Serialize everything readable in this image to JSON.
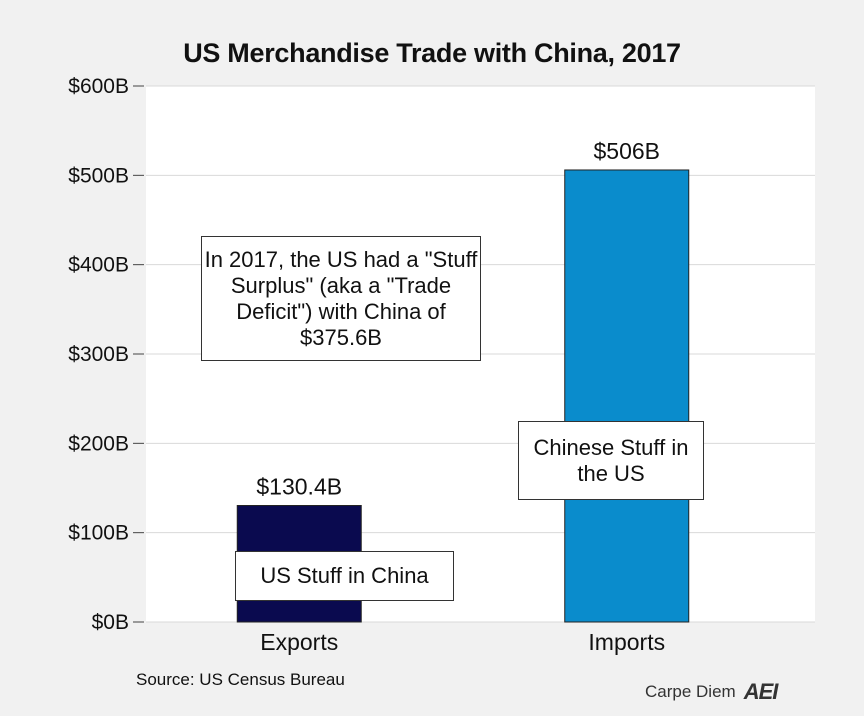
{
  "chart_data": {
    "type": "bar",
    "title": "US Merchandise Trade with China, 2017",
    "categories": [
      "Exports",
      "Imports"
    ],
    "values": [
      130.4,
      506
    ],
    "data_labels": [
      "$130.4B",
      "$506B"
    ],
    "bar_colors": [
      "#0a0a4f",
      "#0a8ccc"
    ],
    "ylim": [
      0,
      600
    ],
    "yticks": [
      0,
      100,
      200,
      300,
      400,
      500,
      600
    ],
    "ytick_labels": [
      "$0B",
      "$100B",
      "$200B",
      "$300B",
      "$400B",
      "$500B",
      "$600B"
    ],
    "grid": true,
    "annotations": {
      "surplus_note": "In 2017, the US had a \"Stuff Surplus\" (aka a \"Trade Deficit\") with China of $375.6B",
      "exports_note": "US Stuff in China",
      "imports_note": "Chinese Stuff in the US"
    }
  },
  "footer": {
    "source": "Source: US Census Bureau",
    "brand": "Carpe Diem",
    "logo": "AEI"
  },
  "colors": {
    "background": "#f1f1f1",
    "plot_background": "#ffffff",
    "gridline": "#d9d9d9"
  }
}
